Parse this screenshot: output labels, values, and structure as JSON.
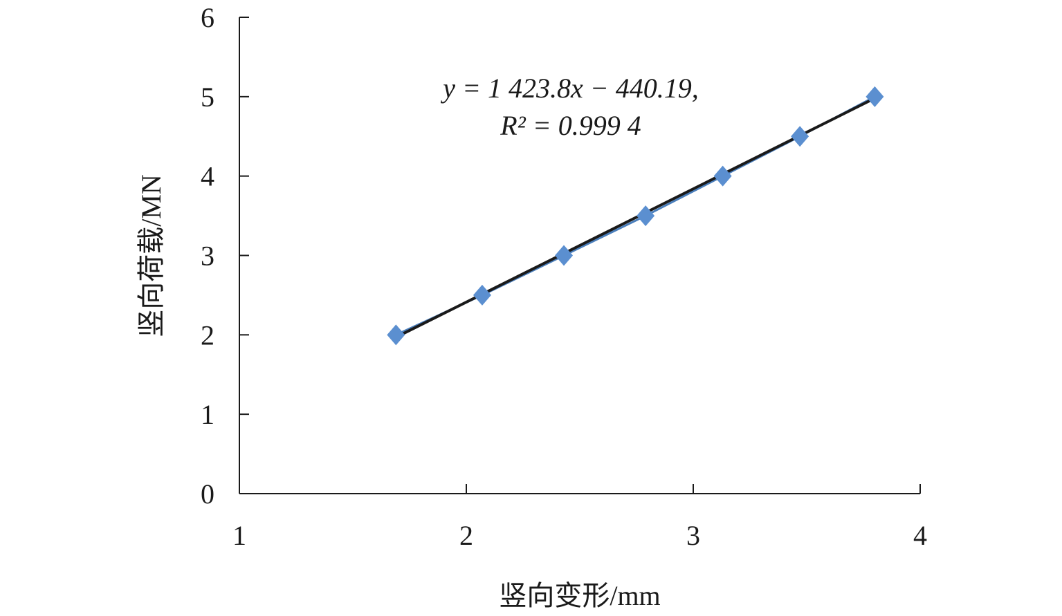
{
  "chart_data": {
    "type": "scatter",
    "x_label": "竖向变形/mm",
    "y_label": "竖向荷载/MN",
    "annotation": [
      "y = 1 423.8x − 440.19,",
      "R² = 0.999 4"
    ],
    "series": [
      {
        "color": "#5b8fd0",
        "line_color": "#4a7ebb",
        "x": [
          1.69,
          2.07,
          2.43,
          2.79,
          3.13,
          3.47,
          3.8
        ],
        "values": [
          2,
          2.5,
          3,
          3.5,
          4,
          4.5,
          5
        ]
      }
    ],
    "trendline": {
      "color": "#1a1a1a",
      "x": [
        1.69,
        3.8
      ],
      "values": [
        1.97,
        4.98
      ]
    },
    "xlim": [
      1,
      4
    ],
    "xticks": [
      1,
      2,
      3,
      4
    ],
    "ylim": [
      0,
      6
    ],
    "yticks": [
      0,
      1,
      2,
      3,
      4,
      5,
      6
    ]
  }
}
